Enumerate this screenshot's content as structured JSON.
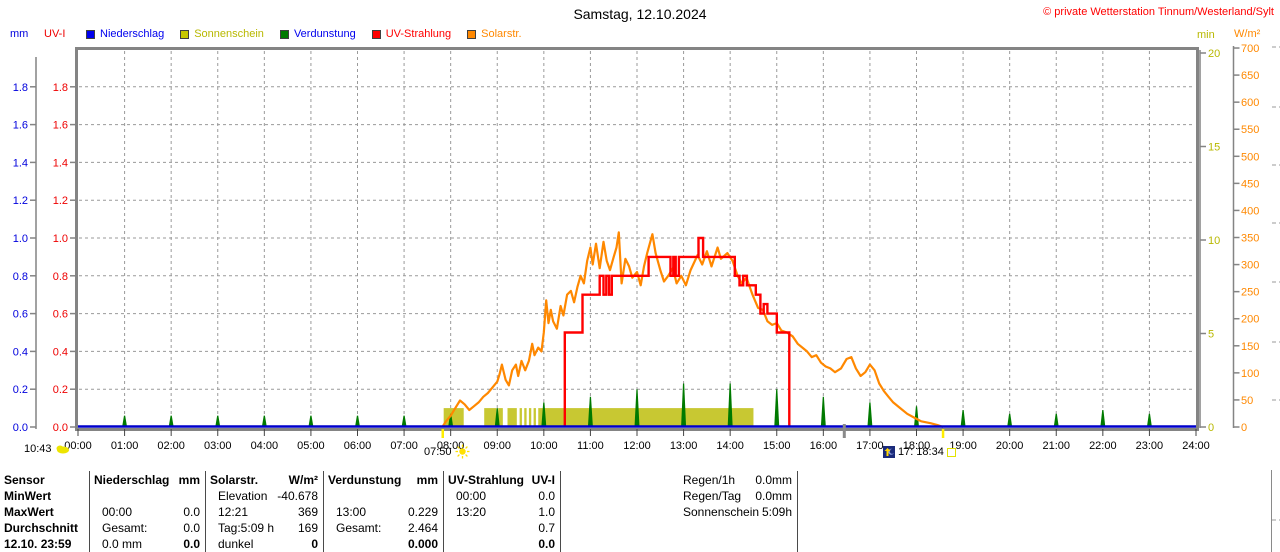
{
  "header": {
    "title": "Samstag, 12.10.2024",
    "copyright": "© private Wetterstation Tinnum/Westerland/Sylt"
  },
  "legend": {
    "items": [
      {
        "label": "Niederschlag",
        "color": "#0000ee",
        "text_color": "#0000ee"
      },
      {
        "label": "Sonnenschein",
        "color": "#c8c800",
        "text_color": "#b8b800"
      },
      {
        "label": "Verdunstung",
        "color": "#007a00",
        "text_color": "#0000ee"
      },
      {
        "label": "UV-Strahlung",
        "color": "#ff0000",
        "text_color": "#ff0000"
      },
      {
        "label": "Solarstr.",
        "color": "#ff8800",
        "text_color": "#ff8800"
      }
    ]
  },
  "markers": {
    "moonset": {
      "time": "10:43"
    },
    "sunrise": {
      "time": "07:50",
      "hour": 7.83
    },
    "moonrise": {
      "time": "17:",
      "tick_hour": 16.45
    },
    "sunset": {
      "time": "18:34",
      "hour": 18.57
    }
  },
  "chart_data": {
    "type": "line",
    "title": "Samstag, 12.10.2024",
    "grid": true,
    "x_axis": {
      "range": [
        0,
        24
      ],
      "labels": [
        "00:00",
        "01:00",
        "02:00",
        "03:00",
        "04:00",
        "05:00",
        "06:00",
        "07:00",
        "08:00",
        "09:00",
        "10:00",
        "11:00",
        "12:00",
        "13:00",
        "14:00",
        "15:00",
        "16:00",
        "17:00",
        "18:00",
        "19:00",
        "20:00",
        "21:00",
        "22:00",
        "23:00",
        "24:00"
      ]
    },
    "axes": {
      "mm": {
        "label": "mm",
        "color": "#0000dd",
        "ticks": [
          0.0,
          0.2,
          0.4,
          0.6,
          0.8,
          1.0,
          1.2,
          1.4,
          1.6,
          1.8
        ],
        "max": 2.0
      },
      "uvi": {
        "label": "UV-I",
        "color": "#ee0000",
        "ticks": [
          0.0,
          0.2,
          0.4,
          0.6,
          0.8,
          1.0,
          1.2,
          1.4,
          1.6,
          1.8
        ],
        "max": 2.0
      },
      "min": {
        "label": "min",
        "color": "#b8b800",
        "ticks": [
          0,
          5,
          10,
          15,
          20
        ],
        "max": 20.2
      },
      "wm2": {
        "label": "W/m²",
        "color": "#ff8800",
        "ticks": [
          0,
          50,
          100,
          150,
          200,
          250,
          300,
          350,
          400,
          450,
          500,
          550,
          600,
          650,
          700
        ],
        "max": 700
      }
    },
    "series": [
      {
        "name": "Niederschlag",
        "type": "line",
        "color": "#0000cc",
        "axis": "mm",
        "points": [
          [
            0,
            0
          ],
          [
            24,
            0
          ]
        ]
      },
      {
        "name": "Sonnenschein",
        "type": "bars",
        "color": "#c8c832",
        "axis": "mm",
        "bar_height": 0.1,
        "intervals": [
          [
            7.85,
            8.28
          ],
          [
            8.72,
            8.98
          ],
          [
            9.02,
            9.12
          ],
          [
            9.22,
            9.42
          ],
          [
            9.48,
            9.53
          ],
          [
            9.58,
            9.63
          ],
          [
            9.68,
            9.73
          ],
          [
            9.78,
            9.83
          ],
          [
            9.88,
            14.5
          ]
        ]
      },
      {
        "name": "Verdunstung",
        "type": "spikes",
        "color": "#007a00",
        "axis": "mm",
        "points": [
          [
            1,
            0.06
          ],
          [
            2,
            0.06
          ],
          [
            3,
            0.06
          ],
          [
            4,
            0.06
          ],
          [
            5,
            0.06
          ],
          [
            6,
            0.06
          ],
          [
            7,
            0.06
          ],
          [
            8,
            0.07
          ],
          [
            9,
            0.1
          ],
          [
            10,
            0.13
          ],
          [
            11,
            0.16
          ],
          [
            12,
            0.2
          ],
          [
            13,
            0.23
          ],
          [
            14,
            0.23
          ],
          [
            15,
            0.2
          ],
          [
            16,
            0.16
          ],
          [
            17,
            0.13
          ],
          [
            18,
            0.11
          ],
          [
            19,
            0.09
          ],
          [
            20,
            0.07
          ],
          [
            21,
            0.07
          ],
          [
            22,
            0.09
          ],
          [
            23,
            0.07
          ]
        ]
      },
      {
        "name": "UV-Strahlung",
        "type": "step",
        "color": "#ff0000",
        "axis": "uvi",
        "start_value": 0,
        "steps": [
          [
            10.45,
            0.5
          ],
          [
            10.83,
            0.7
          ],
          [
            11.2,
            0.8
          ],
          [
            11.28,
            0.7
          ],
          [
            11.34,
            0.8
          ],
          [
            11.4,
            0.7
          ],
          [
            11.46,
            0.8
          ],
          [
            12.25,
            0.9
          ],
          [
            12.72,
            0.8
          ],
          [
            12.78,
            0.9
          ],
          [
            12.83,
            0.8
          ],
          [
            12.9,
            0.9
          ],
          [
            13.32,
            1.0
          ],
          [
            13.42,
            0.9
          ],
          [
            14.1,
            0.8
          ],
          [
            14.2,
            0.75
          ],
          [
            14.28,
            0.8
          ],
          [
            14.36,
            0.75
          ],
          [
            14.55,
            0.7
          ],
          [
            14.65,
            0.6
          ],
          [
            14.72,
            0.65
          ],
          [
            14.8,
            0.6
          ],
          [
            15.0,
            0.5
          ],
          [
            15.27,
            0
          ]
        ]
      },
      {
        "name": "Solarstr.",
        "type": "line",
        "color": "#ff8800",
        "axis": "mm",
        "scale_note": "1.0 on mm axis = 350 W/m²",
        "points": [
          [
            7.82,
            0
          ],
          [
            7.9,
            0.03
          ],
          [
            8.0,
            0.06
          ],
          [
            8.1,
            0.1
          ],
          [
            8.2,
            0.14
          ],
          [
            8.3,
            0.12
          ],
          [
            8.4,
            0.09
          ],
          [
            8.5,
            0.11
          ],
          [
            8.6,
            0.13
          ],
          [
            8.7,
            0.16
          ],
          [
            8.8,
            0.18
          ],
          [
            8.9,
            0.21
          ],
          [
            9.0,
            0.24
          ],
          [
            9.05,
            0.28
          ],
          [
            9.1,
            0.33
          ],
          [
            9.18,
            0.25
          ],
          [
            9.25,
            0.22
          ],
          [
            9.32,
            0.3
          ],
          [
            9.4,
            0.33
          ],
          [
            9.45,
            0.27
          ],
          [
            9.52,
            0.35
          ],
          [
            9.6,
            0.3
          ],
          [
            9.68,
            0.35
          ],
          [
            9.75,
            0.44
          ],
          [
            9.8,
            0.38
          ],
          [
            9.88,
            0.42
          ],
          [
            9.95,
            0.4
          ],
          [
            10.0,
            0.5
          ],
          [
            10.05,
            0.67
          ],
          [
            10.1,
            0.55
          ],
          [
            10.15,
            0.62
          ],
          [
            10.2,
            0.56
          ],
          [
            10.28,
            0.52
          ],
          [
            10.36,
            0.64
          ],
          [
            10.42,
            0.59
          ],
          [
            10.5,
            0.7
          ],
          [
            10.58,
            0.72
          ],
          [
            10.65,
            0.66
          ],
          [
            10.72,
            0.74
          ],
          [
            10.79,
            0.8
          ],
          [
            10.86,
            0.76
          ],
          [
            10.93,
            0.88
          ],
          [
            11.0,
            0.95
          ],
          [
            11.05,
            0.86
          ],
          [
            11.12,
            0.97
          ],
          [
            11.2,
            0.84
          ],
          [
            11.28,
            0.98
          ],
          [
            11.35,
            0.88
          ],
          [
            11.42,
            0.83
          ],
          [
            11.5,
            0.9
          ],
          [
            11.56,
            0.95
          ],
          [
            11.61,
            1.03
          ],
          [
            11.67,
            0.76
          ],
          [
            11.75,
            0.89
          ],
          [
            11.83,
            0.85
          ],
          [
            11.9,
            0.79
          ],
          [
            12.0,
            0.82
          ],
          [
            12.08,
            0.75
          ],
          [
            12.15,
            0.85
          ],
          [
            12.22,
            0.92
          ],
          [
            12.33,
            1.02
          ],
          [
            12.4,
            0.92
          ],
          [
            12.5,
            0.83
          ],
          [
            12.58,
            0.77
          ],
          [
            12.67,
            0.8
          ],
          [
            12.77,
            0.84
          ],
          [
            12.85,
            0.76
          ],
          [
            12.95,
            0.8
          ],
          [
            13.05,
            0.75
          ],
          [
            13.15,
            0.83
          ],
          [
            13.3,
            0.91
          ],
          [
            13.4,
            0.86
          ],
          [
            13.5,
            0.93
          ],
          [
            13.6,
            0.85
          ],
          [
            13.73,
            0.95
          ],
          [
            13.8,
            0.89
          ],
          [
            13.94,
            0.92
          ],
          [
            14.05,
            0.88
          ],
          [
            14.16,
            0.8
          ],
          [
            14.25,
            0.76
          ],
          [
            14.35,
            0.79
          ],
          [
            14.48,
            0.7
          ],
          [
            14.6,
            0.63
          ],
          [
            14.7,
            0.62
          ],
          [
            14.8,
            0.56
          ],
          [
            14.9,
            0.54
          ],
          [
            15.0,
            0.55
          ],
          [
            15.1,
            0.51
          ],
          [
            15.22,
            0.5
          ],
          [
            15.34,
            0.48
          ],
          [
            15.45,
            0.44
          ],
          [
            15.55,
            0.42
          ],
          [
            15.65,
            0.4
          ],
          [
            15.75,
            0.37
          ],
          [
            15.85,
            0.38
          ],
          [
            15.95,
            0.34
          ],
          [
            16.05,
            0.32
          ],
          [
            16.15,
            0.31
          ],
          [
            16.25,
            0.29
          ],
          [
            16.38,
            0.31
          ],
          [
            16.5,
            0.36
          ],
          [
            16.6,
            0.37
          ],
          [
            16.7,
            0.31
          ],
          [
            16.8,
            0.27
          ],
          [
            16.9,
            0.29
          ],
          [
            17.0,
            0.33
          ],
          [
            17.1,
            0.3
          ],
          [
            17.2,
            0.23
          ],
          [
            17.3,
            0.19
          ],
          [
            17.4,
            0.16
          ],
          [
            17.5,
            0.13
          ],
          [
            17.65,
            0.1
          ],
          [
            17.8,
            0.07
          ],
          [
            17.95,
            0.05
          ],
          [
            18.1,
            0.03
          ],
          [
            18.3,
            0.02
          ],
          [
            18.45,
            0.01
          ],
          [
            18.57,
            0
          ]
        ]
      }
    ]
  },
  "table": {
    "row_labels": [
      "Sensor",
      "MinWert",
      "MaxWert",
      "Durchschnitt",
      "12.10. 23:59"
    ],
    "columns": [
      {
        "title": "Niederschlag",
        "unit": "mm",
        "rows": [
          [
            "",
            ""
          ],
          [
            "00:00",
            "0.0"
          ],
          [
            "Gesamt:",
            "0.0"
          ],
          [
            "0.0 mm",
            "0.0"
          ]
        ]
      },
      {
        "title": "Solarstr.",
        "unit": "W/m²",
        "rows": [
          [
            "Elevation",
            "-40.678"
          ],
          [
            "12:21",
            "369"
          ],
          [
            "Tag:5:09 h",
            "169"
          ],
          [
            "dunkel",
            "0"
          ]
        ]
      },
      {
        "title": "Verdunstung",
        "unit": "mm",
        "rows": [
          [
            "",
            ""
          ],
          [
            "13:00",
            "0.229"
          ],
          [
            "Gesamt:",
            "2.464"
          ],
          [
            "",
            "0.000"
          ]
        ]
      },
      {
        "title": "UV-Strahlung",
        "unit": "UV-I",
        "rows": [
          [
            "00:00",
            "0.0"
          ],
          [
            "13:20",
            "1.0"
          ],
          [
            "",
            "0.7"
          ],
          [
            "",
            "0.0"
          ]
        ]
      }
    ],
    "summary": [
      [
        "Regen/1h",
        "0.0mm"
      ],
      [
        "Regen/Tag",
        "0.0mm"
      ],
      [
        "Sonnenschein",
        "5:09h"
      ]
    ]
  }
}
